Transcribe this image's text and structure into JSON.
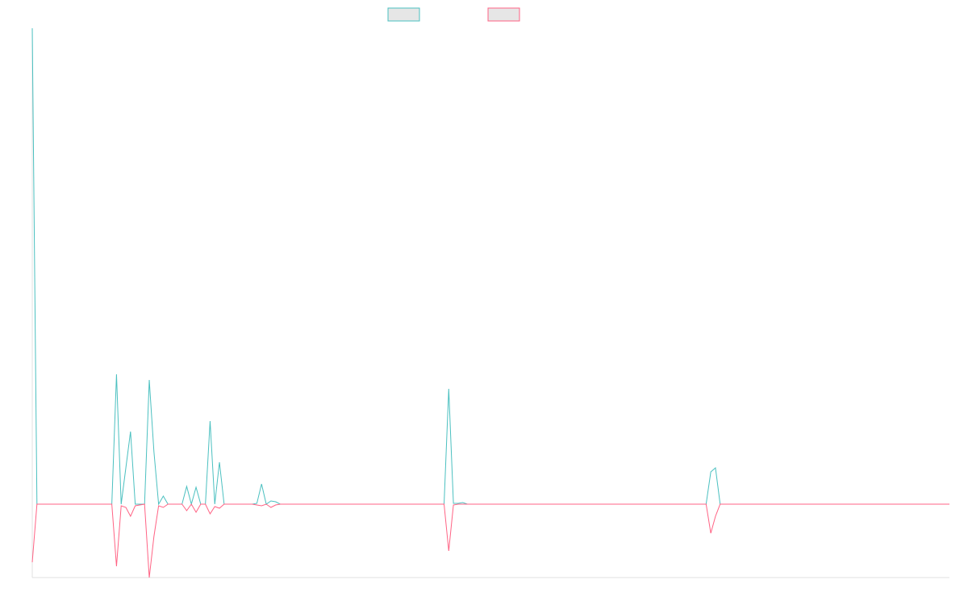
{
  "chart_data": {
    "type": "line",
    "x": [
      0,
      1,
      17,
      18,
      19,
      20,
      21,
      22,
      24,
      25,
      26,
      27,
      28,
      29,
      32,
      33,
      34,
      35,
      36,
      37,
      38,
      39,
      40,
      41,
      47,
      48,
      49,
      50,
      51,
      52,
      53,
      88,
      89,
      90,
      91,
      92,
      93,
      144,
      145,
      146,
      147,
      196
    ],
    "xlim": [
      0,
      196
    ],
    "ylim": [
      -91,
      590
    ],
    "series": [
      {
        "color": "#4bc0c0",
        "values": [
          590,
          0,
          0,
          161,
          0,
          45,
          90,
          0,
          0,
          154,
          65,
          0,
          10,
          0,
          0,
          22,
          0,
          21,
          0,
          0,
          103,
          0,
          52,
          0,
          0,
          1,
          25,
          0,
          4,
          3,
          0,
          0,
          143,
          1,
          1,
          2,
          0,
          0,
          40,
          45,
          0,
          0
        ]
      },
      {
        "color": "#ff6384",
        "values": [
          -72,
          0,
          0,
          -77,
          -2,
          -4,
          -15,
          -2,
          0,
          -91,
          -40,
          -2,
          -4,
          0,
          0,
          -8,
          0,
          -10,
          0,
          0,
          -12,
          -3,
          -5,
          0,
          0,
          -1,
          -2,
          0,
          -4,
          -1,
          0,
          0,
          -58,
          -1,
          0,
          0,
          0,
          0,
          -36,
          -15,
          0,
          0
        ]
      }
    ]
  }
}
